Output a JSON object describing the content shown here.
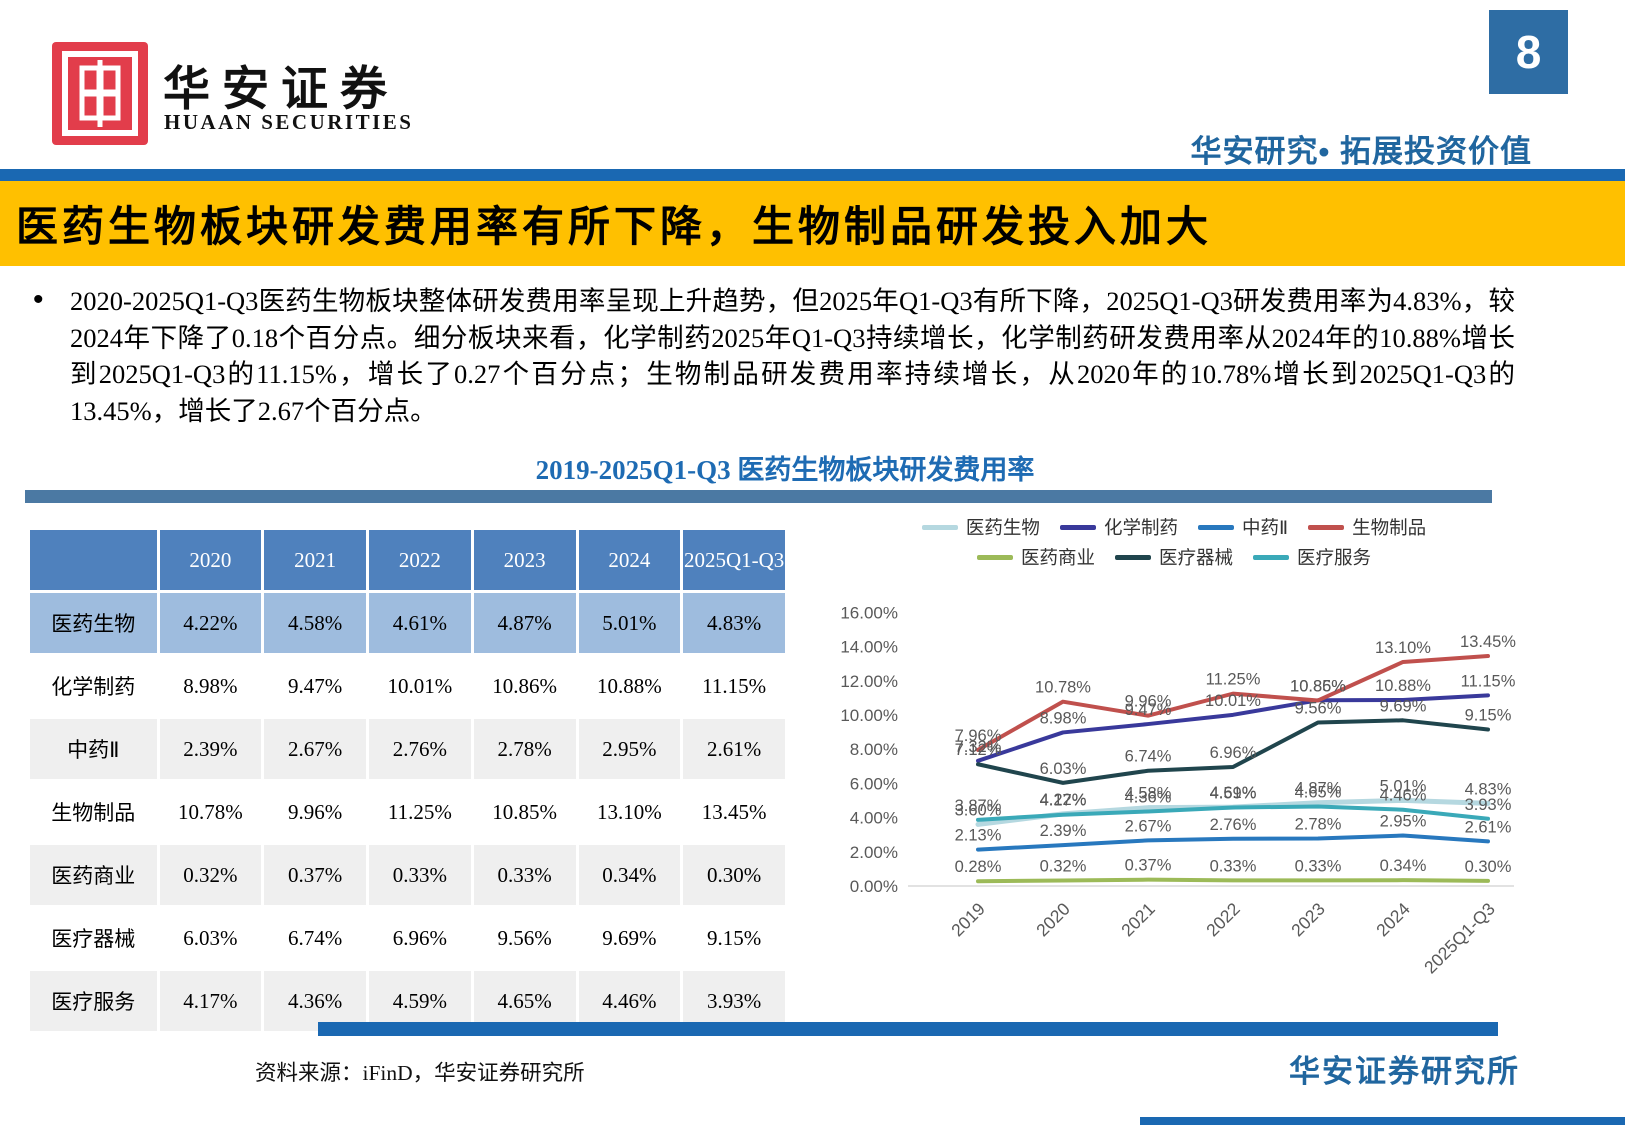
{
  "page": {
    "number": "8"
  },
  "header": {
    "logo_cn": "华安证券",
    "logo_en": "HUAAN SECURITIES",
    "slogan": "华安研究• 拓展投资价值"
  },
  "banner": {
    "title": "医药生物板块研发费用率有所下降，生物制品研发投入加大"
  },
  "bullet": {
    "text": "2020-2025Q1-Q3医药生物板块整体研发费用率呈现上升趋势，但2025年Q1-Q3有所下降，2025Q1-Q3研发费用率为4.83%，较2024年下降了0.18个百分点。细分板块来看，化学制药2025年Q1-Q3持续增长，化学制药研发费用率从2024年的10.88%增长到2025Q1-Q3的11.15%，增长了0.27个百分点；生物制品研发费用率持续增长，从2020年的10.78%增长到2025Q1-Q3的13.45%，增长了2.67个百分点。"
  },
  "chart_title": "2019-2025Q1-Q3 医药生物板块研发费用率",
  "table": {
    "columns": [
      "",
      "2020",
      "2021",
      "2022",
      "2023",
      "2024",
      "2025Q1-Q3"
    ],
    "rows": [
      {
        "label": "医药生物",
        "values": [
          "4.22%",
          "4.58%",
          "4.61%",
          "4.87%",
          "5.01%",
          "4.83%"
        ]
      },
      {
        "label": "化学制药",
        "values": [
          "8.98%",
          "9.47%",
          "10.01%",
          "10.86%",
          "10.88%",
          "11.15%"
        ]
      },
      {
        "label": "中药Ⅱ",
        "values": [
          "2.39%",
          "2.67%",
          "2.76%",
          "2.78%",
          "2.95%",
          "2.61%"
        ]
      },
      {
        "label": "生物制品",
        "values": [
          "10.78%",
          "9.96%",
          "11.25%",
          "10.85%",
          "13.10%",
          "13.45%"
        ]
      },
      {
        "label": "医药商业",
        "values": [
          "0.32%",
          "0.37%",
          "0.33%",
          "0.33%",
          "0.34%",
          "0.30%"
        ]
      },
      {
        "label": "医疗器械",
        "values": [
          "6.03%",
          "6.74%",
          "6.96%",
          "9.56%",
          "9.69%",
          "9.15%"
        ]
      },
      {
        "label": "医疗服务",
        "values": [
          "4.17%",
          "4.36%",
          "4.59%",
          "4.65%",
          "4.46%",
          "3.93%"
        ]
      }
    ]
  },
  "chart_data": {
    "type": "line",
    "title": "2019-2025Q1-Q3 医药生物板块研发费用率",
    "x": [
      "2019",
      "2020",
      "2021",
      "2022",
      "2023",
      "2024",
      "2025Q1-Q3"
    ],
    "series": [
      {
        "name": "医药生物",
        "color": "#b5d8e0",
        "values": [
          3.6,
          4.22,
          4.58,
          4.61,
          4.87,
          5.01,
          4.83
        ]
      },
      {
        "name": "化学制药",
        "color": "#39399b",
        "values": [
          7.32,
          8.98,
          9.47,
          10.01,
          10.86,
          10.88,
          11.15
        ]
      },
      {
        "name": "中药Ⅱ",
        "color": "#2878be",
        "values": [
          2.13,
          2.39,
          2.67,
          2.76,
          2.78,
          2.95,
          2.61
        ]
      },
      {
        "name": "生物制品",
        "color": "#c0504d",
        "values": [
          7.96,
          10.78,
          9.96,
          11.25,
          10.85,
          13.1,
          13.45
        ]
      },
      {
        "name": "医药商业",
        "color": "#9cba58",
        "values": [
          0.28,
          0.32,
          0.37,
          0.33,
          0.33,
          0.34,
          0.3
        ]
      },
      {
        "name": "医疗器械",
        "color": "#20454d",
        "values": [
          7.12,
          6.03,
          6.74,
          6.96,
          9.56,
          9.69,
          9.15
        ]
      },
      {
        "name": "医疗服务",
        "color": "#3aa9b8",
        "values": [
          3.87,
          4.17,
          4.36,
          4.59,
          4.65,
          4.46,
          3.93
        ]
      }
    ],
    "ylim": [
      0,
      16
    ],
    "ytick_step": 2,
    "ytick_format": "percent-2dp",
    "data_labels": true,
    "grid": false,
    "legend_position": "top",
    "legend_rows": [
      [
        "医药生物",
        "化学制药",
        "中药Ⅱ",
        "生物制品"
      ],
      [
        "医药商业",
        "医疗器械",
        "医疗服务"
      ]
    ]
  },
  "footer": {
    "source": "资料来源：iFinD，华安证券研究所",
    "org": "华安证券研究所"
  }
}
